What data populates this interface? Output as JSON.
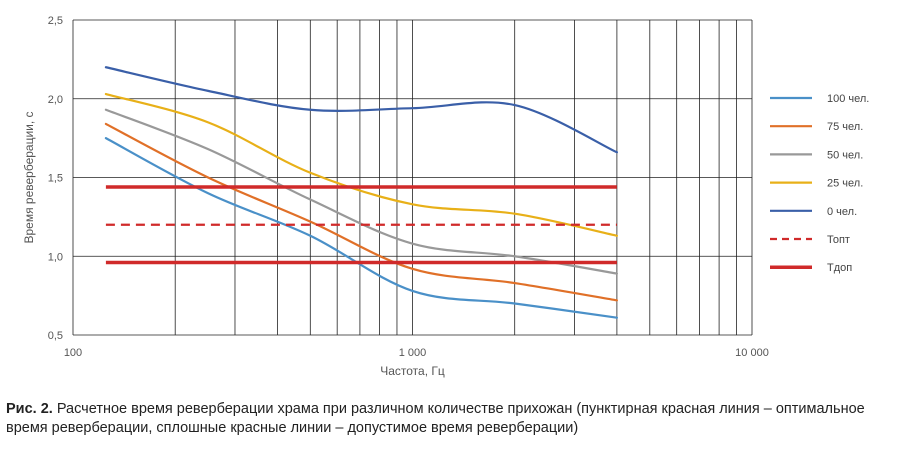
{
  "chart_data": {
    "type": "line",
    "xlabel": "Частота, Гц",
    "ylabel": "Время реверберации, с",
    "xscale": "log",
    "xlim": [
      100,
      10000
    ],
    "ylim": [
      0.5,
      2.5
    ],
    "x_tick_labels": [
      {
        "value": 100,
        "label": "100"
      },
      {
        "value": 1000,
        "label": "1 000"
      },
      {
        "value": 10000,
        "label": "10 000"
      }
    ],
    "y_tick_labels": [
      {
        "value": 0.5,
        "label": "0,5"
      },
      {
        "value": 1.0,
        "label": "1,0"
      },
      {
        "value": 1.5,
        "label": "1,5"
      },
      {
        "value": 2.0,
        "label": "2,0"
      },
      {
        "value": 2.5,
        "label": "2,5"
      }
    ],
    "grid": {
      "x_minor_log": true,
      "y_major": true
    },
    "legend_position": "right",
    "x": [
      125,
      250,
      500,
      1000,
      2000,
      4000
    ],
    "series": [
      {
        "name": "100 чел.",
        "color": "#4a90c8",
        "style": "solid",
        "values": [
          1.75,
          1.4,
          1.13,
          0.78,
          0.7,
          0.61
        ]
      },
      {
        "name": "75 чел.",
        "color": "#e07028",
        "style": "solid",
        "values": [
          1.84,
          1.5,
          1.22,
          0.92,
          0.83,
          0.72
        ]
      },
      {
        "name": "50 чел.",
        "color": "#999999",
        "style": "solid",
        "values": [
          1.93,
          1.68,
          1.36,
          1.08,
          1.0,
          0.89
        ]
      },
      {
        "name": "25 чел.",
        "color": "#e8b018",
        "style": "solid",
        "values": [
          2.03,
          1.85,
          1.53,
          1.33,
          1.27,
          1.13
        ]
      },
      {
        "name": "0 чел.",
        "color": "#3a5fa8",
        "style": "solid",
        "values": [
          2.2,
          2.05,
          1.93,
          1.94,
          1.96,
          1.66
        ]
      },
      {
        "name": "Топт",
        "color": "#d02a2a",
        "style": "dashed",
        "values": [
          1.2,
          1.2,
          1.2,
          1.2,
          1.2,
          1.2
        ]
      },
      {
        "name": "Тдоп",
        "color": "#d02a2a",
        "style": "thick",
        "values": [
          1.44,
          1.44,
          1.44,
          1.44,
          1.44,
          1.44
        ]
      },
      {
        "name": "",
        "color": "#d02a2a",
        "style": "thick",
        "values": [
          0.96,
          0.96,
          0.96,
          0.96,
          0.96,
          0.96
        ]
      }
    ]
  },
  "caption": {
    "lead": "Рис. 2.",
    "text": " Расчетное время реверберации храма при различном количестве прихожан (пунктирная красная линия – оптимальное время реверберации, сплошные красные линии – допустимое время реверберации)"
  }
}
